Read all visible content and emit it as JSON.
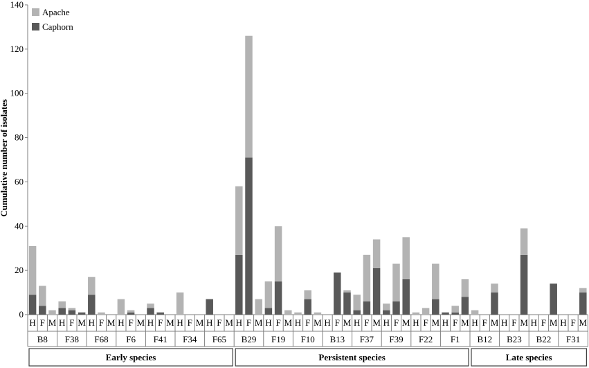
{
  "chart_data": {
    "type": "bar",
    "stacked": true,
    "ylabel": "Cumulative number of isolates",
    "ylim": [
      0,
      140
    ],
    "yticks": [
      0,
      20,
      40,
      60,
      80,
      100,
      120,
      140
    ],
    "grid": false,
    "legend_position": "top-left",
    "conditions": [
      "H",
      "F",
      "M"
    ],
    "series": [
      {
        "name": "Caphorn",
        "color": "#595959"
      },
      {
        "name": "Apache",
        "color": "#b3b3b3"
      }
    ],
    "groups": [
      {
        "label": "Early species",
        "species": [
          {
            "label": "B8",
            "caphorn": [
              9,
              4,
              0
            ],
            "apache": [
              22,
              9,
              2
            ]
          },
          {
            "label": "F38",
            "caphorn": [
              3,
              2,
              1
            ],
            "apache": [
              3,
              1,
              0
            ]
          },
          {
            "label": "F68",
            "caphorn": [
              9,
              0,
              0
            ],
            "apache": [
              8,
              1,
              0
            ]
          },
          {
            "label": "F6",
            "caphorn": [
              0,
              1,
              0
            ],
            "apache": [
              7,
              1,
              0
            ]
          },
          {
            "label": "F41",
            "caphorn": [
              3,
              1,
              0
            ],
            "apache": [
              2,
              0,
              0
            ]
          },
          {
            "label": "F34",
            "caphorn": [
              0,
              0,
              0
            ],
            "apache": [
              10,
              0,
              0
            ]
          },
          {
            "label": "F65",
            "caphorn": [
              7,
              0,
              0
            ],
            "apache": [
              0,
              0,
              0
            ]
          }
        ]
      },
      {
        "label": "Persistent species",
        "species": [
          {
            "label": "B29",
            "caphorn": [
              27,
              71,
              0
            ],
            "apache": [
              31,
              55,
              7
            ]
          },
          {
            "label": "F19",
            "caphorn": [
              3,
              15,
              0
            ],
            "apache": [
              12,
              25,
              2
            ]
          },
          {
            "label": "F10",
            "caphorn": [
              0,
              7,
              0
            ],
            "apache": [
              1,
              4,
              1
            ]
          },
          {
            "label": "B13",
            "caphorn": [
              0,
              19,
              10
            ],
            "apache": [
              0,
              0,
              1
            ]
          },
          {
            "label": "F37",
            "caphorn": [
              2,
              6,
              21
            ],
            "apache": [
              7,
              21,
              13
            ]
          },
          {
            "label": "F39",
            "caphorn": [
              2,
              6,
              16
            ],
            "apache": [
              3,
              17,
              19
            ]
          },
          {
            "label": "F22",
            "caphorn": [
              0,
              0,
              7
            ],
            "apache": [
              1,
              3,
              16
            ]
          },
          {
            "label": "F1",
            "caphorn": [
              1,
              1,
              8
            ],
            "apache": [
              0,
              3,
              8
            ]
          }
        ]
      },
      {
        "label": "Late species",
        "species": [
          {
            "label": "B12",
            "caphorn": [
              0,
              0,
              10
            ],
            "apache": [
              2,
              0,
              4
            ]
          },
          {
            "label": "B23",
            "caphorn": [
              0,
              0,
              27
            ],
            "apache": [
              0,
              0,
              12
            ]
          },
          {
            "label": "B22",
            "caphorn": [
              0,
              0,
              14
            ],
            "apache": [
              0,
              0,
              0
            ]
          },
          {
            "label": "F31",
            "caphorn": [
              0,
              0,
              10
            ],
            "apache": [
              0,
              0,
              2
            ]
          }
        ]
      }
    ]
  }
}
